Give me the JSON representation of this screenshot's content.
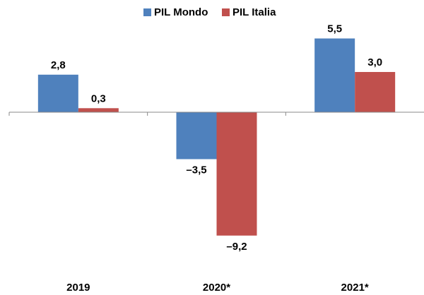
{
  "chart_data": {
    "type": "bar",
    "categories": [
      "2019",
      "2020*",
      "2021*"
    ],
    "series": [
      {
        "name": "PIL Mondo",
        "color": "#4f81bd",
        "values": [
          2.8,
          -3.5,
          5.5
        ],
        "value_labels": [
          "2,8",
          "–3,5",
          "5,5"
        ]
      },
      {
        "name": "PIL Italia",
        "color": "#c0504d",
        "values": [
          0.3,
          -9.2,
          3.0
        ],
        "value_labels": [
          "0,3",
          "–9,2",
          "3,0"
        ]
      }
    ],
    "legend": "top"
  }
}
